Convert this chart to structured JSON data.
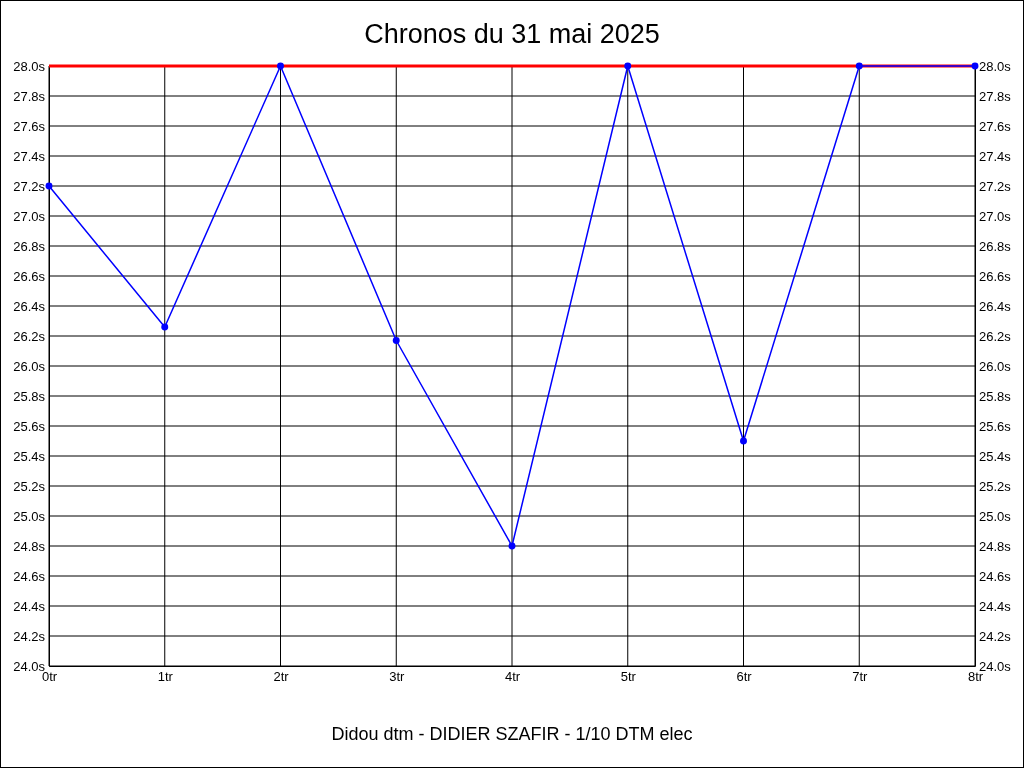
{
  "chart_data": {
    "type": "line",
    "title": "Chronos du 31 mai 2025",
    "categories": [
      "0tr",
      "1tr",
      "2tr",
      "3tr",
      "4tr",
      "5tr",
      "6tr",
      "7tr",
      "8tr"
    ],
    "series": [
      {
        "color": "#0000ff",
        "values": [
          27.2,
          26.26,
          28.0,
          26.17,
          24.8,
          28.0,
          25.5,
          28.0,
          28.0
        ]
      }
    ],
    "ylim": [
      24,
      28
    ],
    "yticks": [
      {
        "value": 24,
        "label": "24.0s"
      },
      {
        "value": 24.2,
        "label": "24.2s"
      },
      {
        "value": 24.4,
        "label": "24.4s"
      },
      {
        "value": 24.6,
        "label": "24.6s"
      },
      {
        "value": 24.8,
        "label": "24.8s"
      },
      {
        "value": 25,
        "label": "25.0s"
      },
      {
        "value": 25.2,
        "label": "25.2s"
      },
      {
        "value": 25.4,
        "label": "25.4s"
      },
      {
        "value": 25.6,
        "label": "25.6s"
      },
      {
        "value": 25.8,
        "label": "25.8s"
      },
      {
        "value": 26,
        "label": "26.0s"
      },
      {
        "value": 26.2,
        "label": "26.2s"
      },
      {
        "value": 26.4,
        "label": "26.4s"
      },
      {
        "value": 26.6,
        "label": "26.6s"
      },
      {
        "value": 26.8,
        "label": "26.8s"
      },
      {
        "value": 27,
        "label": "27.0s"
      },
      {
        "value": 27.2,
        "label": "27.2s"
      },
      {
        "value": 27.4,
        "label": "27.4s"
      },
      {
        "value": 27.6,
        "label": "27.6s"
      },
      {
        "value": 27.8,
        "label": "27.8s"
      },
      {
        "value": 28,
        "label": "28.0s"
      }
    ],
    "y2lim": [
      24,
      28
    ],
    "y2ticks": [
      {
        "value": 24,
        "label": "24.0s"
      },
      {
        "value": 24.2,
        "label": "24.2s"
      },
      {
        "value": 24.4,
        "label": "24.4s"
      },
      {
        "value": 24.6,
        "label": "24.6s"
      },
      {
        "value": 24.8,
        "label": "24.8s"
      },
      {
        "value": 25,
        "label": "25.0s"
      },
      {
        "value": 25.2,
        "label": "25.2s"
      },
      {
        "value": 25.4,
        "label": "25.4s"
      },
      {
        "value": 25.6,
        "label": "25.6s"
      },
      {
        "value": 25.8,
        "label": "25.8s"
      },
      {
        "value": 26,
        "label": "26.0s"
      },
      {
        "value": 26.2,
        "label": "26.2s"
      },
      {
        "value": 26.4,
        "label": "26.4s"
      },
      {
        "value": 26.6,
        "label": "26.6s"
      },
      {
        "value": 26.8,
        "label": "26.8s"
      },
      {
        "value": 27,
        "label": "27.0s"
      },
      {
        "value": 27.2,
        "label": "27.2s"
      },
      {
        "value": 27.4,
        "label": "27.4s"
      },
      {
        "value": 27.6,
        "label": "27.6s"
      },
      {
        "value": 27.8,
        "label": "27.8s"
      },
      {
        "value": 28,
        "label": "28.0s"
      }
    ],
    "grid": true,
    "marker": "circle",
    "line_style": "solid",
    "ref_lines": [
      {
        "axis": "y",
        "value": 28,
        "color": "#ff0000"
      }
    ],
    "annotations": [
      "Didou dtm - DIDIER SZAFIR - 1/10 DTM elec"
    ]
  }
}
